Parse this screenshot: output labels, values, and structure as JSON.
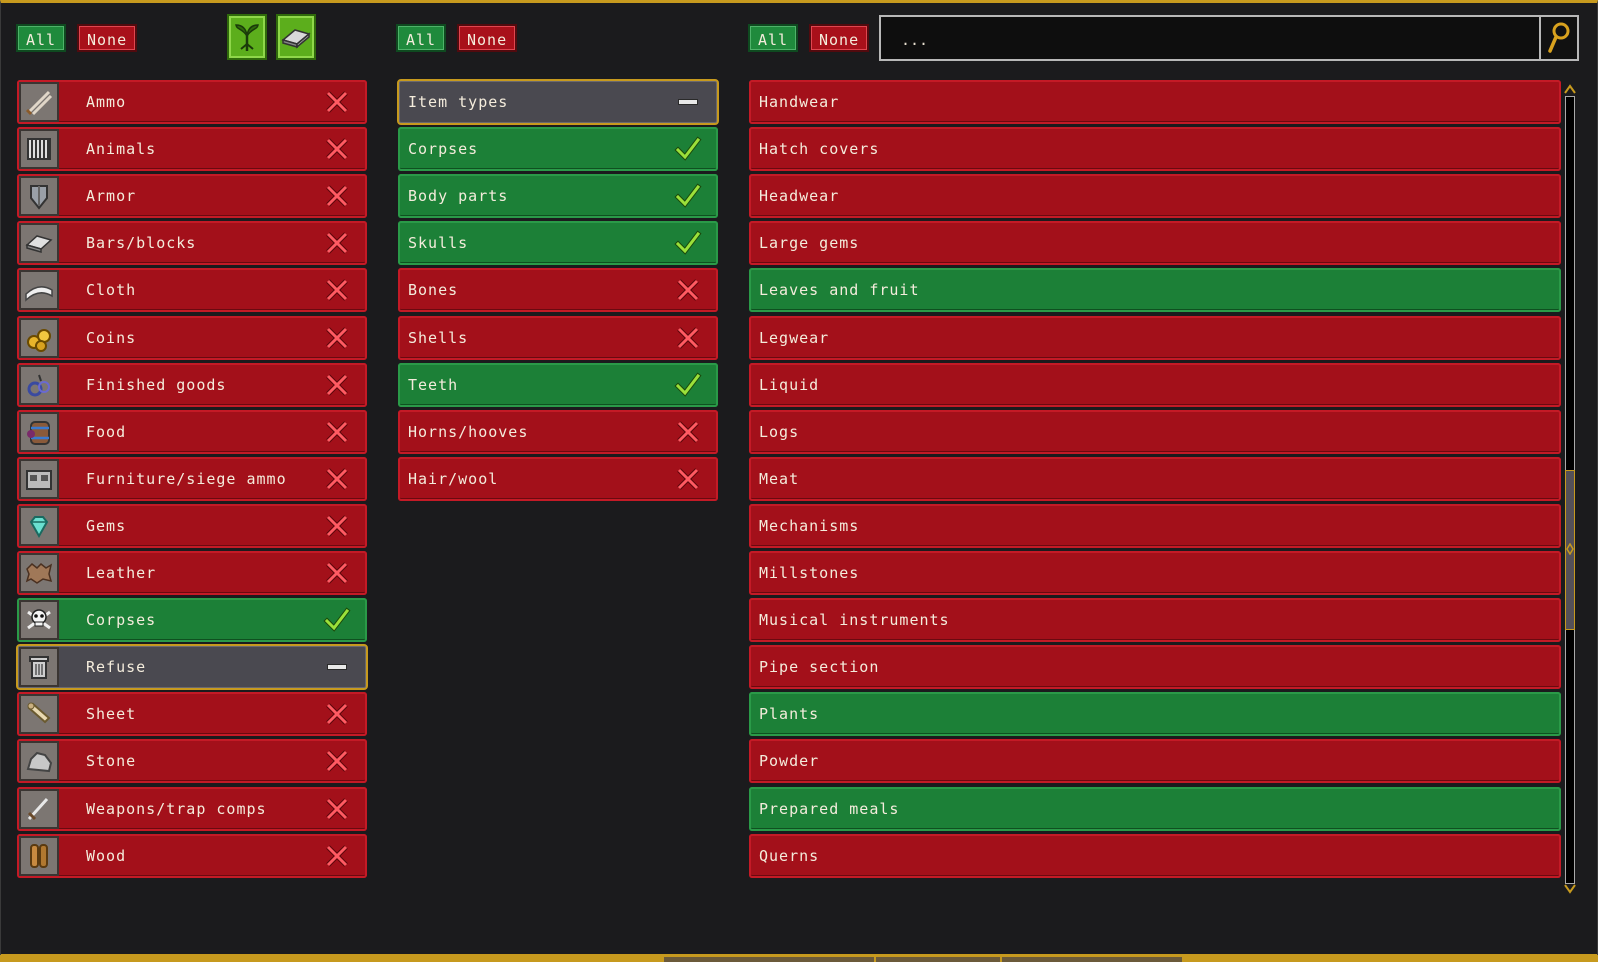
{
  "left_panel": {
    "all_label": "All",
    "none_label": "None",
    "icon_buttons": [
      {
        "icon": "plant-sprout-icon"
      },
      {
        "icon": "metal-bar-icon"
      }
    ],
    "items": [
      {
        "label": "Ammo",
        "state": "disabled",
        "icon": "ammo-icon"
      },
      {
        "label": "Animals",
        "state": "disabled",
        "icon": "cage-icon"
      },
      {
        "label": "Armor",
        "state": "disabled",
        "icon": "armor-icon"
      },
      {
        "label": "Bars/blocks",
        "state": "disabled",
        "icon": "bar-icon"
      },
      {
        "label": "Cloth",
        "state": "disabled",
        "icon": "cloth-icon"
      },
      {
        "label": "Coins",
        "state": "disabled",
        "icon": "coins-icon"
      },
      {
        "label": "Finished goods",
        "state": "disabled",
        "icon": "finished-goods-icon"
      },
      {
        "label": "Food",
        "state": "disabled",
        "icon": "food-barrel-icon"
      },
      {
        "label": "Furniture/siege ammo",
        "state": "disabled",
        "icon": "furniture-icon"
      },
      {
        "label": "Gems",
        "state": "disabled",
        "icon": "gem-icon"
      },
      {
        "label": "Leather",
        "state": "disabled",
        "icon": "leather-icon"
      },
      {
        "label": "Corpses",
        "state": "enabled",
        "icon": "skull-crossbones-icon"
      },
      {
        "label": "Refuse",
        "state": "partial",
        "icon": "trash-can-icon"
      },
      {
        "label": "Sheet",
        "state": "disabled",
        "icon": "scroll-sheet-icon"
      },
      {
        "label": "Stone",
        "state": "disabled",
        "icon": "stone-icon"
      },
      {
        "label": "Weapons/trap comps",
        "state": "disabled",
        "icon": "sword-icon"
      },
      {
        "label": "Wood",
        "state": "disabled",
        "icon": "wood-logs-icon"
      }
    ]
  },
  "middle_panel": {
    "all_label": "All",
    "none_label": "None",
    "items": [
      {
        "label": "Item types",
        "state": "partial"
      },
      {
        "label": "Corpses",
        "state": "enabled"
      },
      {
        "label": "Body parts",
        "state": "enabled"
      },
      {
        "label": "Skulls",
        "state": "enabled"
      },
      {
        "label": "Bones",
        "state": "disabled"
      },
      {
        "label": "Shells",
        "state": "disabled"
      },
      {
        "label": "Teeth",
        "state": "enabled"
      },
      {
        "label": "Horns/hooves",
        "state": "disabled"
      },
      {
        "label": "Hair/wool",
        "state": "disabled"
      }
    ]
  },
  "right_panel": {
    "all_label": "All",
    "none_label": "None",
    "search": {
      "value": "..."
    },
    "items": [
      {
        "label": "Handwear",
        "state": "disabled"
      },
      {
        "label": "Hatch covers",
        "state": "disabled"
      },
      {
        "label": "Headwear",
        "state": "disabled"
      },
      {
        "label": "Large gems",
        "state": "disabled"
      },
      {
        "label": "Leaves and fruit",
        "state": "enabled"
      },
      {
        "label": "Legwear",
        "state": "disabled"
      },
      {
        "label": "Liquid",
        "state": "disabled"
      },
      {
        "label": "Logs",
        "state": "disabled"
      },
      {
        "label": "Meat",
        "state": "disabled"
      },
      {
        "label": "Mechanisms",
        "state": "disabled"
      },
      {
        "label": "Millstones",
        "state": "disabled"
      },
      {
        "label": "Musical instruments",
        "state": "disabled"
      },
      {
        "label": "Pipe section",
        "state": "disabled"
      },
      {
        "label": "Plants",
        "state": "enabled"
      },
      {
        "label": "Powder",
        "state": "disabled"
      },
      {
        "label": "Prepared meals",
        "state": "enabled"
      },
      {
        "label": "Querns",
        "state": "disabled"
      }
    ]
  },
  "colors": {
    "enabled": "#1c8037",
    "disabled": "#a3101a",
    "partial": "#4a4950",
    "accent_gold": "#c79a1e"
  }
}
